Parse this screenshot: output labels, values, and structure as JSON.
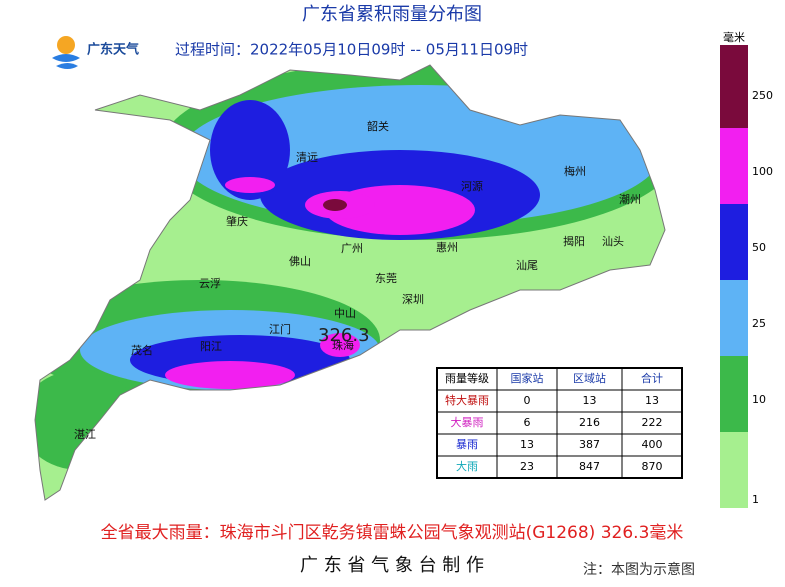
{
  "header": {
    "title": "广东省累积雨量分布图",
    "logo": "广东天气",
    "period": "过程时间：2022年05月10日09时 -- 05月11日09时"
  },
  "legend": {
    "unit": "毫米",
    "ticks": [
      1,
      10,
      25,
      50,
      100,
      250
    ],
    "colors": [
      "#a6ef8f",
      "#3cb94a",
      "#5eb3f5",
      "#1e1ee0",
      "#f21ff0",
      "#7a0a3c"
    ]
  },
  "map": {
    "cities": [
      "韶关",
      "清远",
      "河源",
      "梅州",
      "潮州",
      "肇庆",
      "广州",
      "惠州",
      "揭阳",
      "汕头",
      "佛山",
      "汕尾",
      "云浮",
      "东莞",
      "深圳",
      "江门",
      "中山",
      "珠海",
      "茂名",
      "阳江",
      "湛江"
    ],
    "max_label": "326.3"
  },
  "table": {
    "header": [
      "雨量等级",
      "国家站",
      "区域站",
      "合计"
    ],
    "rows": [
      [
        "特大暴雨",
        0,
        13,
        13
      ],
      [
        "大暴雨",
        6,
        216,
        222
      ],
      [
        "暴雨",
        13,
        387,
        400
      ],
      [
        "大雨",
        23,
        847,
        870
      ]
    ]
  },
  "footer": {
    "max": "全省最大雨量：珠海市斗门区乾务镇雷蛛公园气象观测站(G1268) 326.3毫米",
    "maker": "广 东 省 气 象 台 制 作",
    "note": "注：本图为示意图"
  }
}
